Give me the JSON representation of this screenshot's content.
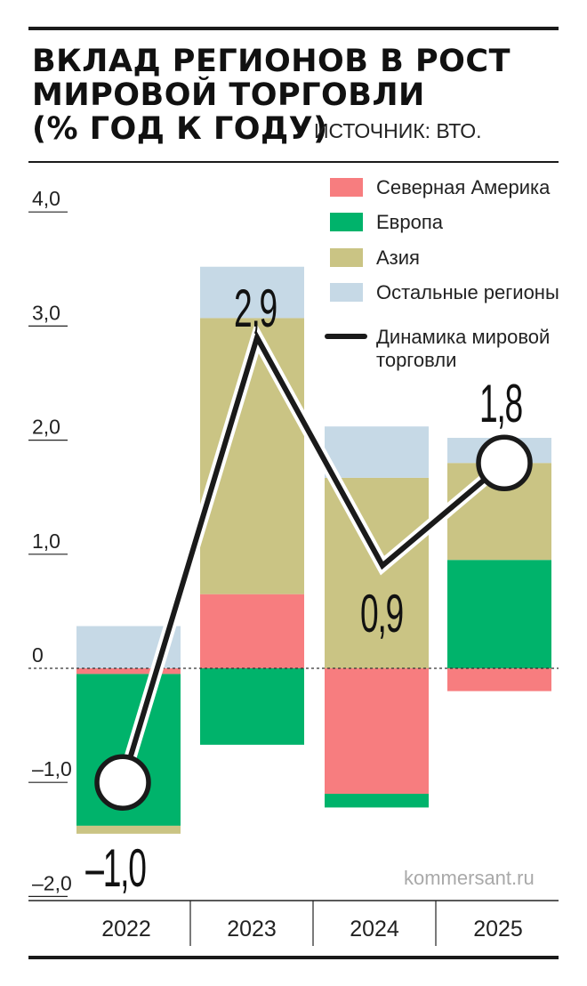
{
  "title": "Вклад регионов в рост\nмировой торговли\n(% год к году)",
  "source": "Источник: ВТО.",
  "watermark": "kommersant.ru",
  "colors": {
    "north_america": "#f77d7f",
    "europe": "#00b36b",
    "asia": "#cac484",
    "other": "#c6d9e6",
    "world_line": "#1a1a1a"
  },
  "chart_data": {
    "type": "bar",
    "stacked": true,
    "categories": [
      "2022",
      "2023",
      "2024",
      "2025"
    ],
    "ylim": [
      -2.0,
      4.0
    ],
    "yticks": [
      4.0,
      3.0,
      2.0,
      1.0,
      0,
      -1.0,
      -2.0
    ],
    "ytick_labels": [
      "4,0",
      "3,0",
      "2,0",
      "1,0",
      "0",
      "–1,0",
      "–2,0"
    ],
    "zero_line": "dashed",
    "series": [
      {
        "name": "Северная Америка",
        "key": "north_america",
        "values": [
          -0.05,
          0.65,
          -1.1,
          -0.2
        ]
      },
      {
        "name": "Европа",
        "key": "europe",
        "values": [
          -1.33,
          -0.67,
          -0.12,
          0.95
        ]
      },
      {
        "name": "Азия",
        "key": "asia",
        "values": [
          -0.07,
          2.42,
          1.67,
          0.85
        ]
      },
      {
        "name": "Остальные регионы",
        "key": "other",
        "values": [
          0.37,
          0.45,
          0.45,
          0.22
        ]
      }
    ],
    "line": {
      "name": "Динамика мировой торговли",
      "values": [
        -1.0,
        2.9,
        0.9,
        1.8
      ],
      "labels": [
        "–1,0",
        "2,9",
        "0,9",
        "1,8"
      ]
    },
    "legend": {
      "position": "top-right",
      "items": [
        {
          "label": "Северная Америка",
          "key": "north_america",
          "kind": "swatch"
        },
        {
          "label": "Европа",
          "key": "europe",
          "kind": "swatch"
        },
        {
          "label": "Азия",
          "key": "asia",
          "kind": "swatch"
        },
        {
          "label": "Остальные регионы",
          "key": "other",
          "kind": "swatch"
        },
        {
          "label": "Динамика мировой торговли",
          "lines": [
            "Динамика мировой",
            "торговли"
          ],
          "key": "world_line",
          "kind": "line"
        }
      ]
    }
  }
}
